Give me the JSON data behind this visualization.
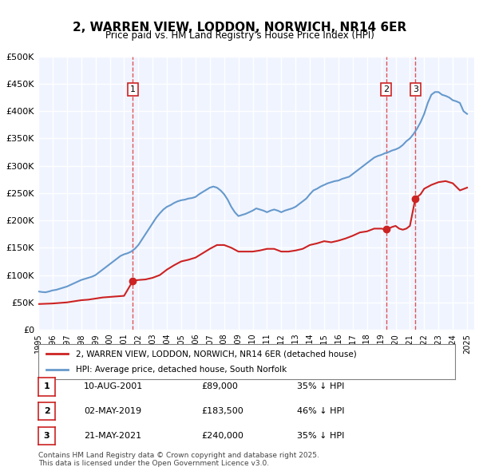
{
  "title": "2, WARREN VIEW, LODDON, NORWICH, NR14 6ER",
  "subtitle": "Price paid vs. HM Land Registry's House Price Index (HPI)",
  "ylabel": "",
  "ylim": [
    0,
    500000
  ],
  "yticks": [
    0,
    50000,
    100000,
    150000,
    200000,
    250000,
    300000,
    350000,
    400000,
    450000,
    500000
  ],
  "ytick_labels": [
    "£0",
    "£50K",
    "£100K",
    "£150K",
    "£200K",
    "£250K",
    "£300K",
    "£350K",
    "£400K",
    "£450K",
    "£500K"
  ],
  "xlim_start": 1995.0,
  "xlim_end": 2025.5,
  "background_color": "#f0f4ff",
  "plot_bg_color": "#f0f4ff",
  "grid_color": "#ffffff",
  "hpi_color": "#6699cc",
  "price_color": "#cc2222",
  "sale_dot_color": "#cc2222",
  "vline_color": "#dd4444",
  "vline_style": "--",
  "legend_label_price": "2, WARREN VIEW, LODDON, NORWICH, NR14 6ER (detached house)",
  "legend_label_hpi": "HPI: Average price, detached house, South Norfolk",
  "footer": "Contains HM Land Registry data © Crown copyright and database right 2025.\nThis data is licensed under the Open Government Licence v3.0.",
  "sales": [
    {
      "label": "1",
      "date": 2001.61,
      "price": 89000,
      "date_str": "10-AUG-2001",
      "price_str": "£89,000",
      "pct_str": "35% ↓ HPI"
    },
    {
      "label": "2",
      "date": 2019.33,
      "price": 183500,
      "date_str": "02-MAY-2019",
      "price_str": "£183,500",
      "pct_str": "46% ↓ HPI"
    },
    {
      "label": "3",
      "date": 2021.38,
      "price": 240000,
      "date_str": "21-MAY-2021",
      "price_str": "£240,000",
      "pct_str": "35% ↓ HPI"
    }
  ],
  "hpi_x": [
    1995.0,
    1995.25,
    1995.5,
    1995.75,
    1996.0,
    1996.25,
    1996.5,
    1996.75,
    1997.0,
    1997.25,
    1997.5,
    1997.75,
    1998.0,
    1998.25,
    1998.5,
    1998.75,
    1999.0,
    1999.25,
    1999.5,
    1999.75,
    2000.0,
    2000.25,
    2000.5,
    2000.75,
    2001.0,
    2001.25,
    2001.5,
    2001.75,
    2002.0,
    2002.25,
    2002.5,
    2002.75,
    2003.0,
    2003.25,
    2003.5,
    2003.75,
    2004.0,
    2004.25,
    2004.5,
    2004.75,
    2005.0,
    2005.25,
    2005.5,
    2005.75,
    2006.0,
    2006.25,
    2006.5,
    2006.75,
    2007.0,
    2007.25,
    2007.5,
    2007.75,
    2008.0,
    2008.25,
    2008.5,
    2008.75,
    2009.0,
    2009.25,
    2009.5,
    2009.75,
    2010.0,
    2010.25,
    2010.5,
    2010.75,
    2011.0,
    2011.25,
    2011.5,
    2011.75,
    2012.0,
    2012.25,
    2012.5,
    2012.75,
    2013.0,
    2013.25,
    2013.5,
    2013.75,
    2014.0,
    2014.25,
    2014.5,
    2014.75,
    2015.0,
    2015.25,
    2015.5,
    2015.75,
    2016.0,
    2016.25,
    2016.5,
    2016.75,
    2017.0,
    2017.25,
    2017.5,
    2017.75,
    2018.0,
    2018.25,
    2018.5,
    2018.75,
    2019.0,
    2019.25,
    2019.5,
    2019.75,
    2020.0,
    2020.25,
    2020.5,
    2020.75,
    2021.0,
    2021.25,
    2021.5,
    2021.75,
    2022.0,
    2022.25,
    2022.5,
    2022.75,
    2023.0,
    2023.25,
    2023.5,
    2023.75,
    2024.0,
    2024.25,
    2024.5,
    2024.75,
    2025.0
  ],
  "hpi_y": [
    70000,
    69000,
    68500,
    70000,
    72000,
    73000,
    75000,
    77000,
    79000,
    82000,
    85000,
    88000,
    91000,
    93000,
    95000,
    97000,
    100000,
    105000,
    110000,
    115000,
    120000,
    125000,
    130000,
    135000,
    138000,
    140000,
    143000,
    148000,
    155000,
    165000,
    175000,
    185000,
    195000,
    205000,
    213000,
    220000,
    225000,
    228000,
    232000,
    235000,
    237000,
    238000,
    240000,
    241000,
    243000,
    248000,
    252000,
    256000,
    260000,
    262000,
    260000,
    255000,
    248000,
    238000,
    225000,
    215000,
    208000,
    210000,
    212000,
    215000,
    218000,
    222000,
    220000,
    218000,
    215000,
    218000,
    220000,
    218000,
    215000,
    218000,
    220000,
    222000,
    225000,
    230000,
    235000,
    240000,
    248000,
    255000,
    258000,
    262000,
    265000,
    268000,
    270000,
    272000,
    273000,
    276000,
    278000,
    280000,
    285000,
    290000,
    295000,
    300000,
    305000,
    310000,
    315000,
    318000,
    320000,
    323000,
    325000,
    328000,
    330000,
    333000,
    338000,
    345000,
    350000,
    358000,
    368000,
    380000,
    395000,
    415000,
    430000,
    435000,
    435000,
    430000,
    428000,
    425000,
    420000,
    418000,
    415000,
    400000,
    395000
  ],
  "price_x": [
    1995.0,
    1995.5,
    1996.0,
    1996.5,
    1997.0,
    1997.5,
    1998.0,
    1998.5,
    1999.0,
    1999.5,
    2000.0,
    2000.5,
    2001.0,
    2001.61,
    2001.75,
    2002.0,
    2002.5,
    2003.0,
    2003.5,
    2004.0,
    2004.5,
    2005.0,
    2005.5,
    2006.0,
    2006.5,
    2007.0,
    2007.5,
    2008.0,
    2008.5,
    2009.0,
    2009.5,
    2010.0,
    2010.5,
    2011.0,
    2011.5,
    2012.0,
    2012.5,
    2013.0,
    2013.5,
    2014.0,
    2014.5,
    2015.0,
    2015.5,
    2016.0,
    2016.5,
    2017.0,
    2017.5,
    2018.0,
    2018.5,
    2019.0,
    2019.33,
    2019.5,
    2019.75,
    2020.0,
    2020.25,
    2020.5,
    2020.75,
    2021.0,
    2021.38,
    2021.75,
    2022.0,
    2022.5,
    2023.0,
    2023.5,
    2024.0,
    2024.5,
    2025.0
  ],
  "price_y": [
    47000,
    47500,
    48000,
    49000,
    50000,
    52000,
    54000,
    55000,
    57000,
    59000,
    60000,
    61000,
    62000,
    89000,
    90000,
    91000,
    92000,
    95000,
    100000,
    110000,
    118000,
    125000,
    128000,
    132000,
    140000,
    148000,
    155000,
    155000,
    150000,
    143000,
    143000,
    143000,
    145000,
    148000,
    148000,
    143000,
    143000,
    145000,
    148000,
    155000,
    158000,
    162000,
    160000,
    163000,
    167000,
    172000,
    178000,
    180000,
    185000,
    185000,
    183500,
    185000,
    188000,
    190000,
    185000,
    183000,
    185000,
    190000,
    240000,
    248000,
    258000,
    265000,
    270000,
    272000,
    268000,
    255000,
    260000
  ]
}
